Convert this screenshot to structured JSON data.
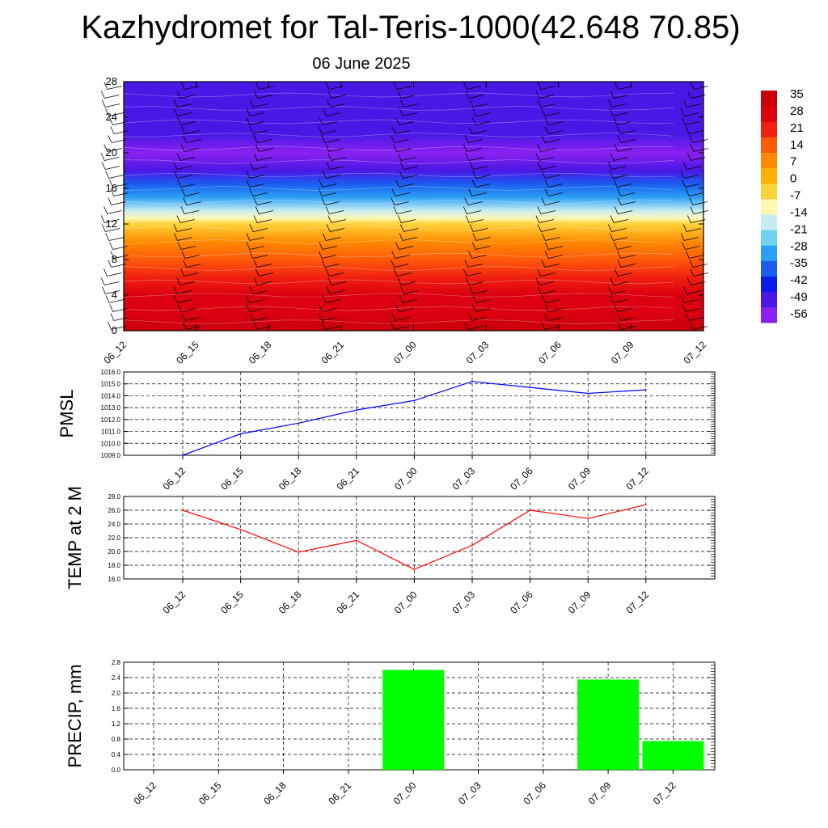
{
  "title": "Kazhydromet for Tal-Teris-1000(42.648 70.85)",
  "subtitle": "06 June 2025",
  "chart_data": [
    {
      "type": "heatmap",
      "x_tick_labels": [
        "06_12",
        "06_15",
        "06_18",
        "06_21",
        "07_00",
        "07_03",
        "07_06",
        "07_09",
        "07_12"
      ],
      "y_ticks": [
        0,
        4,
        8,
        12,
        16,
        20,
        24,
        28
      ],
      "ylim": [
        0,
        28
      ],
      "colorbar": {
        "labels": [
          "35",
          "28",
          "21",
          "14",
          "7",
          "0",
          "-7",
          "-14",
          "-21",
          "-28",
          "-35",
          "-42",
          "-49",
          "-56"
        ],
        "range": [
          -63,
          38
        ]
      },
      "temperature_profile": [
        {
          "level": 0,
          "value": 33
        },
        {
          "level": 2,
          "value": 30
        },
        {
          "level": 4,
          "value": 26
        },
        {
          "level": 6,
          "value": 21
        },
        {
          "level": 8,
          "value": 14
        },
        {
          "level": 10,
          "value": 6
        },
        {
          "level": 12,
          "value": -4
        },
        {
          "level": 12.6,
          "value": -12
        },
        {
          "level": 13.5,
          "value": -22
        },
        {
          "level": 15,
          "value": -32
        },
        {
          "level": 16.5,
          "value": -42
        },
        {
          "level": 18,
          "value": -52
        },
        {
          "level": 20,
          "value": -60
        },
        {
          "level": 22,
          "value": -56
        },
        {
          "level": 24,
          "value": -52
        },
        {
          "level": 26,
          "value": -52
        },
        {
          "level": 28,
          "value": -52
        }
      ],
      "colors": [
        "#8b21f0",
        "#4a18e6",
        "#0a1ae8",
        "#1a5cf0",
        "#2aa0f4",
        "#6fd2f0",
        "#c8ecf4",
        "#fff8b0",
        "#ffd23a",
        "#ffb000",
        "#ff8a00",
        "#ff5a0a",
        "#f02010",
        "#dc0010",
        "#c8000a"
      ]
    },
    {
      "type": "line",
      "ylabel": "PMSL",
      "x": [
        "06_12",
        "06_15",
        "06_18",
        "06_21",
        "07_00",
        "07_03",
        "07_06",
        "07_09",
        "07_12"
      ],
      "values": [
        1009.0,
        1010.8,
        1011.7,
        1012.8,
        1013.6,
        1015.2,
        1014.7,
        1014.2,
        1014.5
      ],
      "y_tick_labels": [
        "1009.0",
        "1010.0",
        "1011.0",
        "1012.0",
        "1013.0",
        "1014.0",
        "1015.0",
        "1016.0"
      ],
      "ylim": [
        1009,
        1016
      ],
      "color": "#0000ff"
    },
    {
      "type": "line",
      "ylabel": "TEMP at 2 M",
      "x": [
        "06_12",
        "06_15",
        "06_18",
        "06_21",
        "07_00",
        "07_03",
        "07_06",
        "07_09",
        "07_12"
      ],
      "values": [
        26.0,
        23.2,
        19.9,
        21.6,
        17.4,
        20.9,
        26.0,
        24.8,
        26.8
      ],
      "y_tick_labels": [
        "16.0",
        "18.0",
        "20.0",
        "22.0",
        "24.0",
        "26.0",
        "28.0"
      ],
      "ylim": [
        16,
        28
      ],
      "color": "#ff0000"
    },
    {
      "type": "bar",
      "ylabel": "PRECIP, mm",
      "categories": [
        "06_12",
        "06_15",
        "06_18",
        "06_21",
        "07_00",
        "07_03",
        "07_06",
        "07_09",
        "07_12"
      ],
      "values": [
        0,
        0,
        0,
        0,
        2.6,
        0,
        0,
        2.35,
        0.75
      ],
      "y_tick_labels": [
        "0.0",
        "0.4",
        "0.8",
        "1.2",
        "1.6",
        "2.0",
        "2.4",
        "2.8"
      ],
      "ylim": [
        0,
        2.8
      ],
      "color": "#00ff00"
    }
  ]
}
